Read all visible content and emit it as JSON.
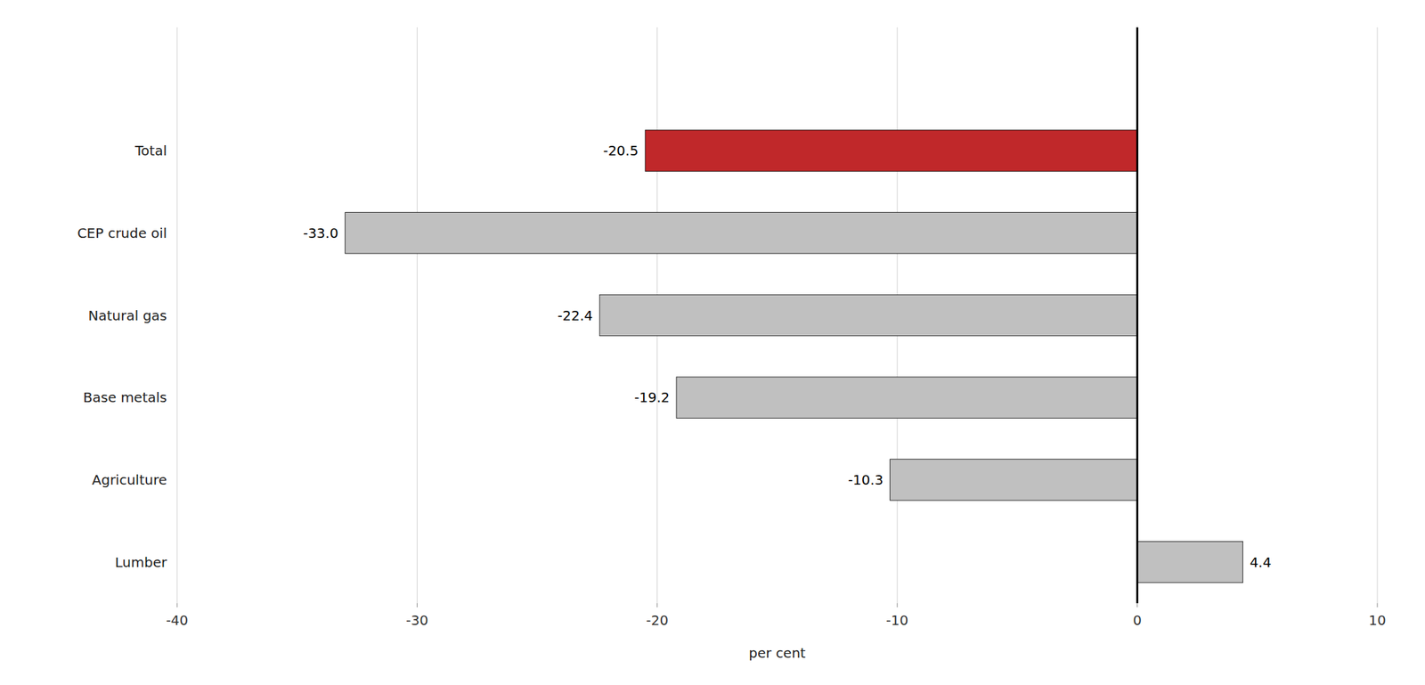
{
  "chart_data": {
    "type": "bar",
    "orientation": "horizontal",
    "categories": [
      "Lumber",
      "Agriculture",
      "Base metals",
      "Natural gas",
      "CEP crude oil",
      "Total"
    ],
    "values": [
      4.4,
      -10.3,
      -19.2,
      -22.4,
      -33.0,
      -20.5
    ],
    "value_labels": [
      "4.4",
      "-10.3",
      "-19.2",
      "-22.4",
      "-33.0",
      "-20.5"
    ],
    "colors": [
      "#c0c0c0",
      "#c0c0c0",
      "#c0c0c0",
      "#c0c0c0",
      "#c0c0c0",
      "#c0282a"
    ],
    "xlabel": "per cent",
    "xlim": [
      -40,
      10
    ],
    "xticks": [
      -40,
      -30,
      -20,
      -10,
      0,
      10
    ],
    "grid": true,
    "data_labels": true
  }
}
